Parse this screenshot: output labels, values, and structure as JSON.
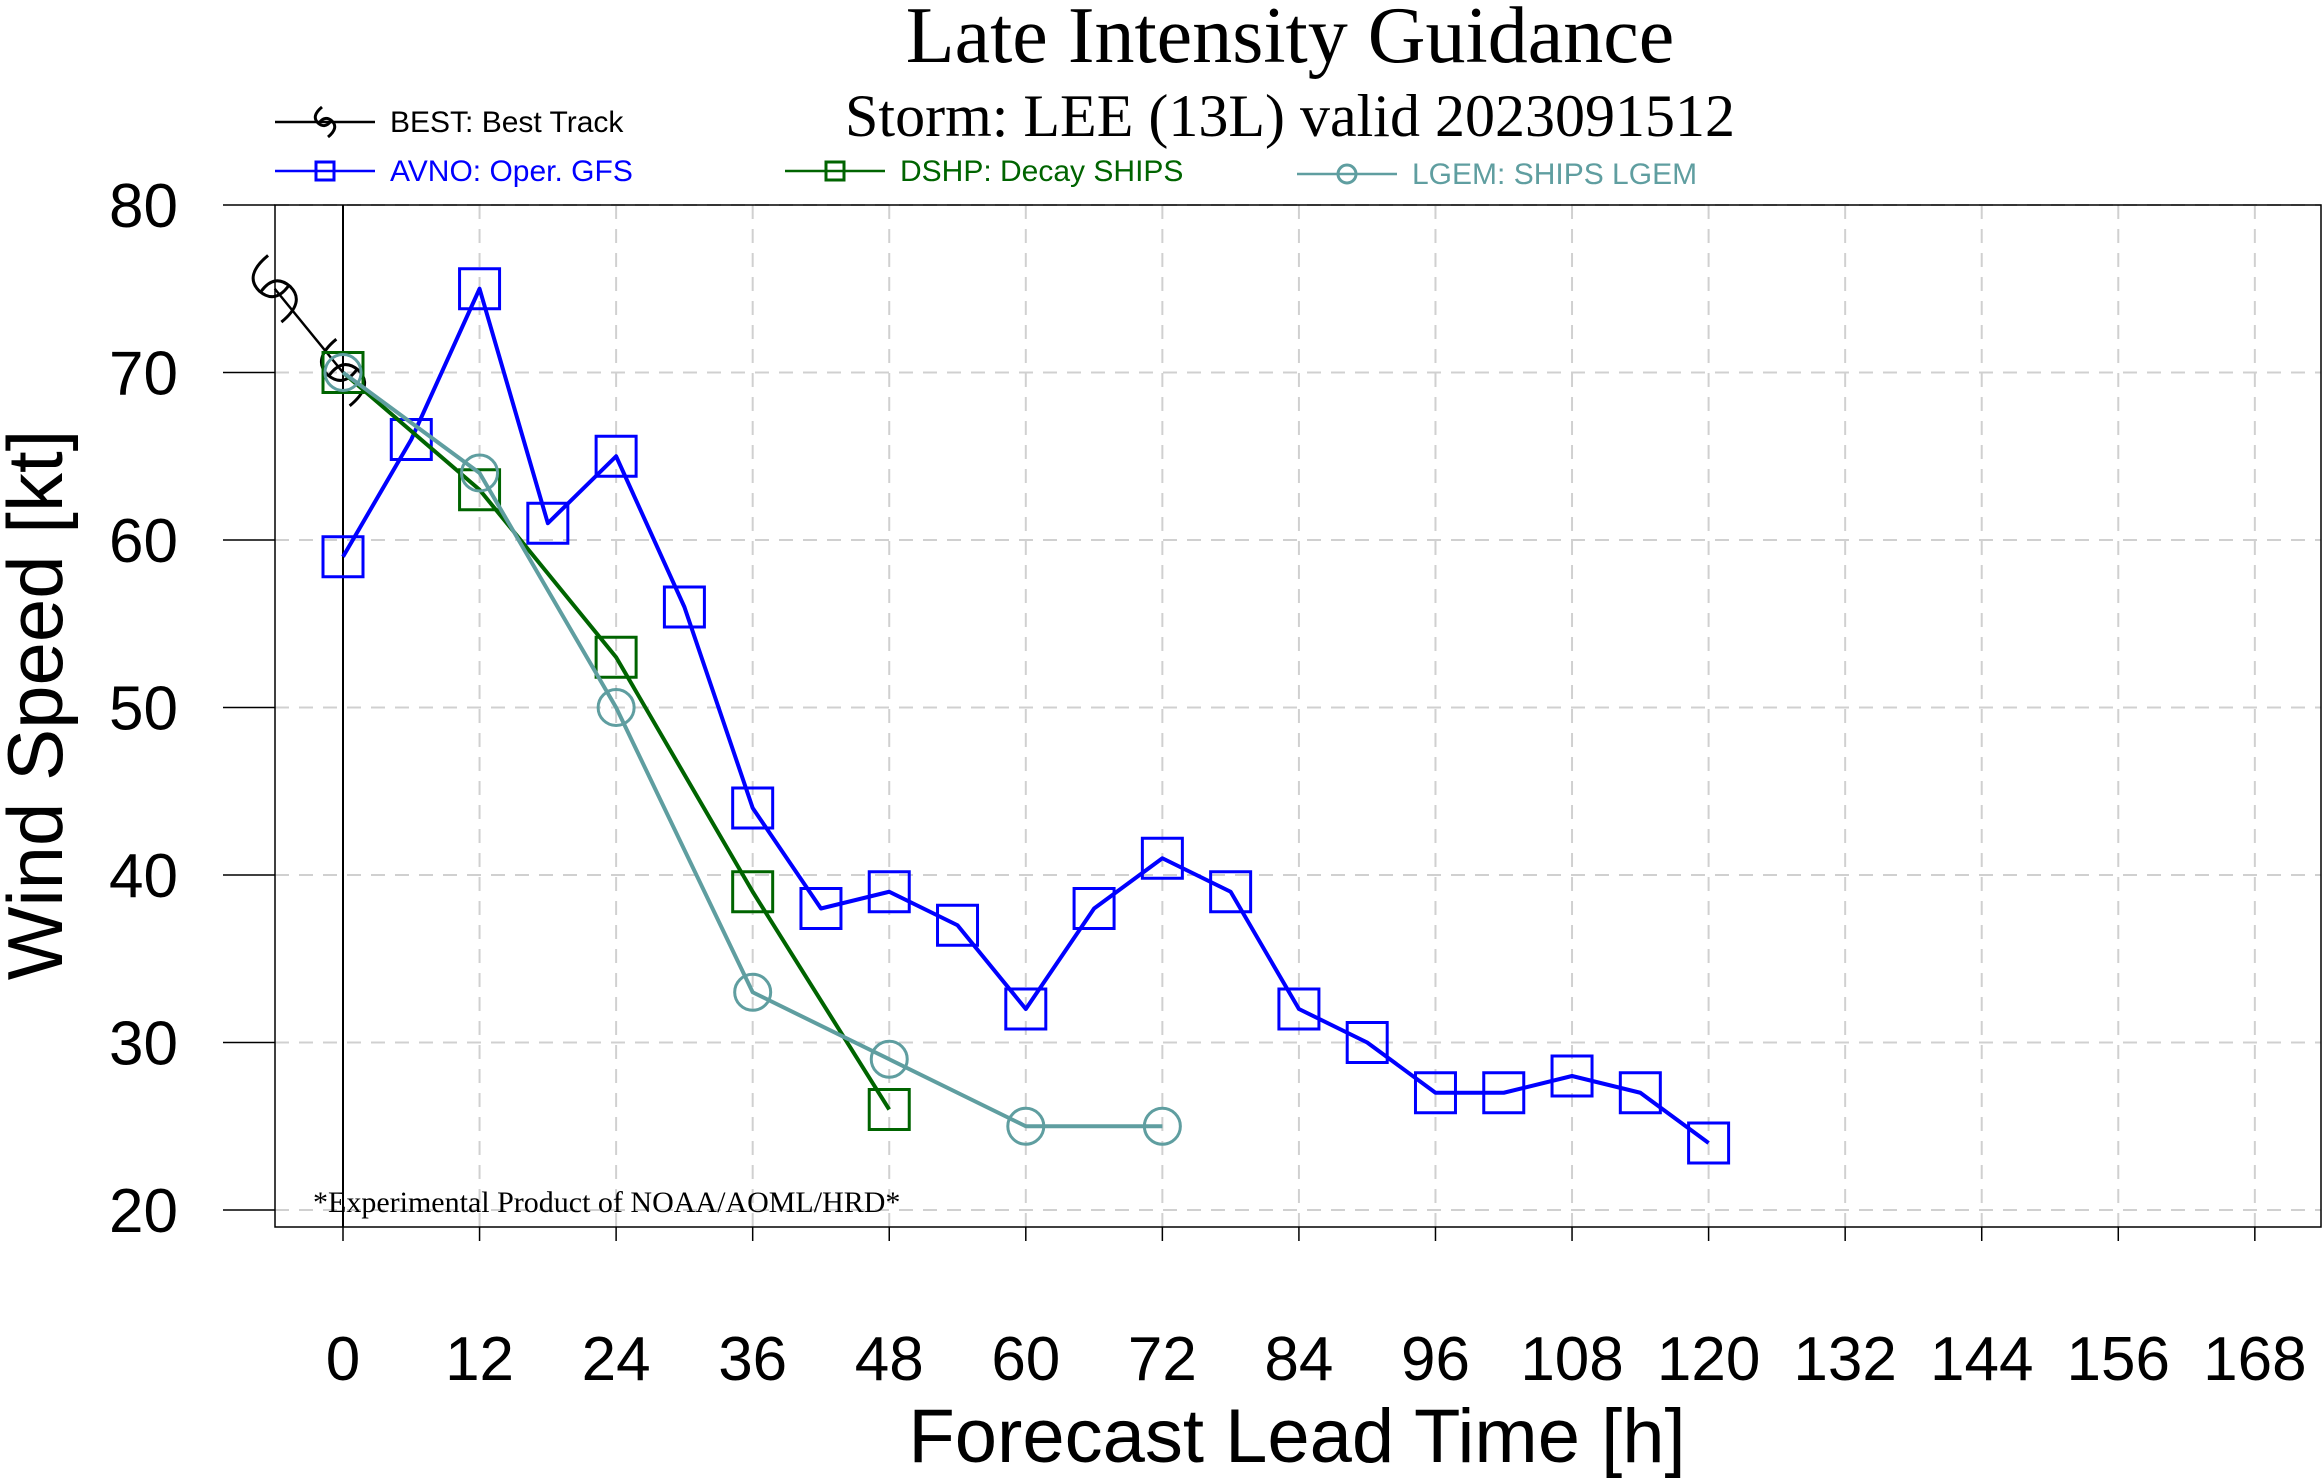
{
  "chart_data": {
    "type": "line",
    "title": "Late Intensity Guidance",
    "subtitle": "Storm: LEE (13L) valid 2023091512",
    "xlabel": "Forecast Lead Time [h]",
    "ylabel": "Wind Speed [kt]",
    "xlim": [
      -6,
      174
    ],
    "ylim": [
      19,
      81
    ],
    "x_ticks": [
      0,
      12,
      24,
      36,
      48,
      60,
      72,
      84,
      96,
      108,
      120,
      132,
      144,
      156,
      168
    ],
    "x_tick_labels": [
      "0",
      "12",
      "24",
      "36",
      "48",
      "60",
      "72",
      "84",
      "96",
      "108",
      "120",
      "132",
      "144",
      "156",
      "168"
    ],
    "y_ticks": [
      20,
      30,
      40,
      50,
      60,
      70,
      80
    ],
    "y_tick_labels": [
      "20",
      "30",
      "40",
      "50",
      "60",
      "70",
      "80"
    ],
    "grid": true,
    "legend_placement": "top",
    "annotation": "*Experimental Product of NOAA/AOML/HRD*",
    "series": [
      {
        "name": "BEST: Best Track",
        "color": "#000000",
        "marker": "hurricane-symbol",
        "x": [
          -6,
          0
        ],
        "y": [
          75,
          70
        ]
      },
      {
        "name": "AVNO: Oper. GFS",
        "color": "#0000ff",
        "marker": "square",
        "x": [
          0,
          6,
          12,
          18,
          24,
          30,
          36,
          42,
          48,
          54,
          60,
          66,
          72,
          78,
          84,
          90,
          96,
          102,
          108,
          114,
          120
        ],
        "y": [
          59,
          66,
          75,
          61,
          65,
          56,
          44,
          38,
          39,
          37,
          32,
          38,
          41,
          39,
          32,
          30,
          27,
          27,
          28,
          27,
          24
        ]
      },
      {
        "name": "DSHP: Decay SHIPS",
        "color": "#006400",
        "marker": "square",
        "x": [
          0,
          12,
          24,
          36,
          48
        ],
        "y": [
          70,
          63,
          53,
          39,
          26
        ]
      },
      {
        "name": "LGEM: SHIPS LGEM",
        "color": "#5f9ea0",
        "marker": "circle",
        "x": [
          0,
          12,
          24,
          36,
          48,
          60,
          72
        ],
        "y": [
          70,
          64,
          50,
          33,
          29,
          25,
          25
        ]
      }
    ]
  }
}
